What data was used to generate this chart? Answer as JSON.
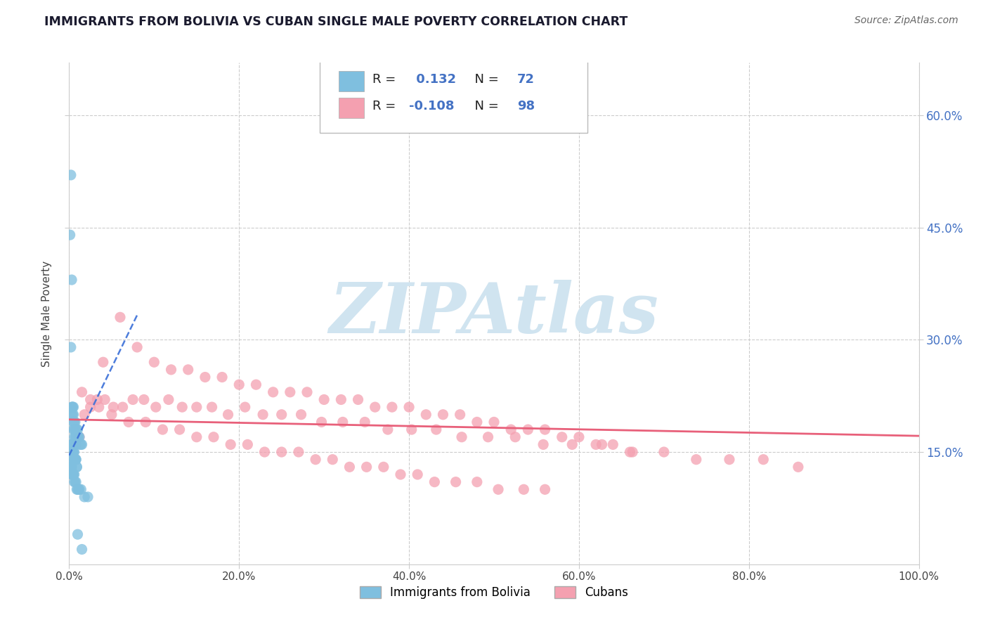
{
  "title": "IMMIGRANTS FROM BOLIVIA VS CUBAN SINGLE MALE POVERTY CORRELATION CHART",
  "source": "Source: ZipAtlas.com",
  "ylabel": "Single Male Poverty",
  "xlim": [
    0,
    1.0
  ],
  "ylim": [
    0,
    0.67
  ],
  "xticks": [
    0.0,
    0.2,
    0.4,
    0.6,
    0.8,
    1.0
  ],
  "xticklabels": [
    "0.0%",
    "20.0%",
    "40.0%",
    "60.0%",
    "80.0%",
    "100.0%"
  ],
  "yticks": [
    0.15,
    0.3,
    0.45,
    0.6
  ],
  "yticklabels_right": [
    "15.0%",
    "30.0%",
    "45.0%",
    "60.0%"
  ],
  "bolivia_color": "#7fbfdf",
  "cuba_color": "#f4a0b0",
  "bolivia_R": 0.132,
  "bolivia_N": 72,
  "cuba_R": -0.108,
  "cuba_N": 98,
  "bolivia_line_color": "#3a6fd8",
  "cuba_line_color": "#e8607a",
  "watermark": "ZIPAtlas",
  "watermark_color": "#d0e4f0",
  "grid_color": "#cccccc",
  "bolivia_x": [
    0.002,
    0.001,
    0.003,
    0.002,
    0.003,
    0.004,
    0.003,
    0.004,
    0.005,
    0.004,
    0.005,
    0.005,
    0.006,
    0.005,
    0.006,
    0.007,
    0.006,
    0.007,
    0.008,
    0.007,
    0.008,
    0.009,
    0.009,
    0.01,
    0.01,
    0.011,
    0.012,
    0.013,
    0.014,
    0.015,
    0.002,
    0.002,
    0.003,
    0.003,
    0.003,
    0.004,
    0.004,
    0.004,
    0.005,
    0.005,
    0.005,
    0.006,
    0.006,
    0.006,
    0.007,
    0.007,
    0.008,
    0.008,
    0.009,
    0.009,
    0.001,
    0.002,
    0.002,
    0.003,
    0.003,
    0.004,
    0.004,
    0.005,
    0.005,
    0.006,
    0.006,
    0.007,
    0.008,
    0.009,
    0.01,
    0.011,
    0.012,
    0.014,
    0.018,
    0.022,
    0.01,
    0.015
  ],
  "bolivia_y": [
    0.52,
    0.44,
    0.38,
    0.29,
    0.21,
    0.21,
    0.2,
    0.21,
    0.21,
    0.2,
    0.2,
    0.19,
    0.19,
    0.18,
    0.18,
    0.19,
    0.17,
    0.18,
    0.18,
    0.17,
    0.17,
    0.18,
    0.17,
    0.18,
    0.17,
    0.17,
    0.17,
    0.16,
    0.16,
    0.16,
    0.16,
    0.15,
    0.16,
    0.15,
    0.15,
    0.16,
    0.15,
    0.15,
    0.15,
    0.15,
    0.14,
    0.15,
    0.14,
    0.14,
    0.14,
    0.14,
    0.14,
    0.14,
    0.13,
    0.13,
    0.13,
    0.13,
    0.13,
    0.13,
    0.12,
    0.12,
    0.12,
    0.12,
    0.12,
    0.12,
    0.11,
    0.11,
    0.11,
    0.1,
    0.1,
    0.1,
    0.1,
    0.1,
    0.09,
    0.09,
    0.04,
    0.02
  ],
  "cuba_x": [
    0.008,
    0.012,
    0.018,
    0.025,
    0.033,
    0.042,
    0.052,
    0.063,
    0.075,
    0.088,
    0.102,
    0.117,
    0.133,
    0.15,
    0.168,
    0.187,
    0.207,
    0.228,
    0.25,
    0.273,
    0.297,
    0.322,
    0.348,
    0.375,
    0.403,
    0.432,
    0.462,
    0.493,
    0.525,
    0.558,
    0.592,
    0.627,
    0.663,
    0.7,
    0.738,
    0.777,
    0.817,
    0.858,
    0.04,
    0.06,
    0.08,
    0.1,
    0.12,
    0.14,
    0.16,
    0.18,
    0.2,
    0.22,
    0.24,
    0.26,
    0.28,
    0.3,
    0.32,
    0.34,
    0.36,
    0.38,
    0.4,
    0.42,
    0.44,
    0.46,
    0.48,
    0.5,
    0.52,
    0.54,
    0.56,
    0.58,
    0.6,
    0.62,
    0.64,
    0.66,
    0.015,
    0.025,
    0.035,
    0.05,
    0.07,
    0.09,
    0.11,
    0.13,
    0.15,
    0.17,
    0.19,
    0.21,
    0.23,
    0.25,
    0.27,
    0.29,
    0.31,
    0.33,
    0.35,
    0.37,
    0.39,
    0.41,
    0.43,
    0.455,
    0.48,
    0.505,
    0.535,
    0.56
  ],
  "cuba_y": [
    0.16,
    0.17,
    0.2,
    0.21,
    0.22,
    0.22,
    0.21,
    0.21,
    0.22,
    0.22,
    0.21,
    0.22,
    0.21,
    0.21,
    0.21,
    0.2,
    0.21,
    0.2,
    0.2,
    0.2,
    0.19,
    0.19,
    0.19,
    0.18,
    0.18,
    0.18,
    0.17,
    0.17,
    0.17,
    0.16,
    0.16,
    0.16,
    0.15,
    0.15,
    0.14,
    0.14,
    0.14,
    0.13,
    0.27,
    0.33,
    0.29,
    0.27,
    0.26,
    0.26,
    0.25,
    0.25,
    0.24,
    0.24,
    0.23,
    0.23,
    0.23,
    0.22,
    0.22,
    0.22,
    0.21,
    0.21,
    0.21,
    0.2,
    0.2,
    0.2,
    0.19,
    0.19,
    0.18,
    0.18,
    0.18,
    0.17,
    0.17,
    0.16,
    0.16,
    0.15,
    0.23,
    0.22,
    0.21,
    0.2,
    0.19,
    0.19,
    0.18,
    0.18,
    0.17,
    0.17,
    0.16,
    0.16,
    0.15,
    0.15,
    0.15,
    0.14,
    0.14,
    0.13,
    0.13,
    0.13,
    0.12,
    0.12,
    0.11,
    0.11,
    0.11,
    0.1,
    0.1,
    0.1
  ]
}
